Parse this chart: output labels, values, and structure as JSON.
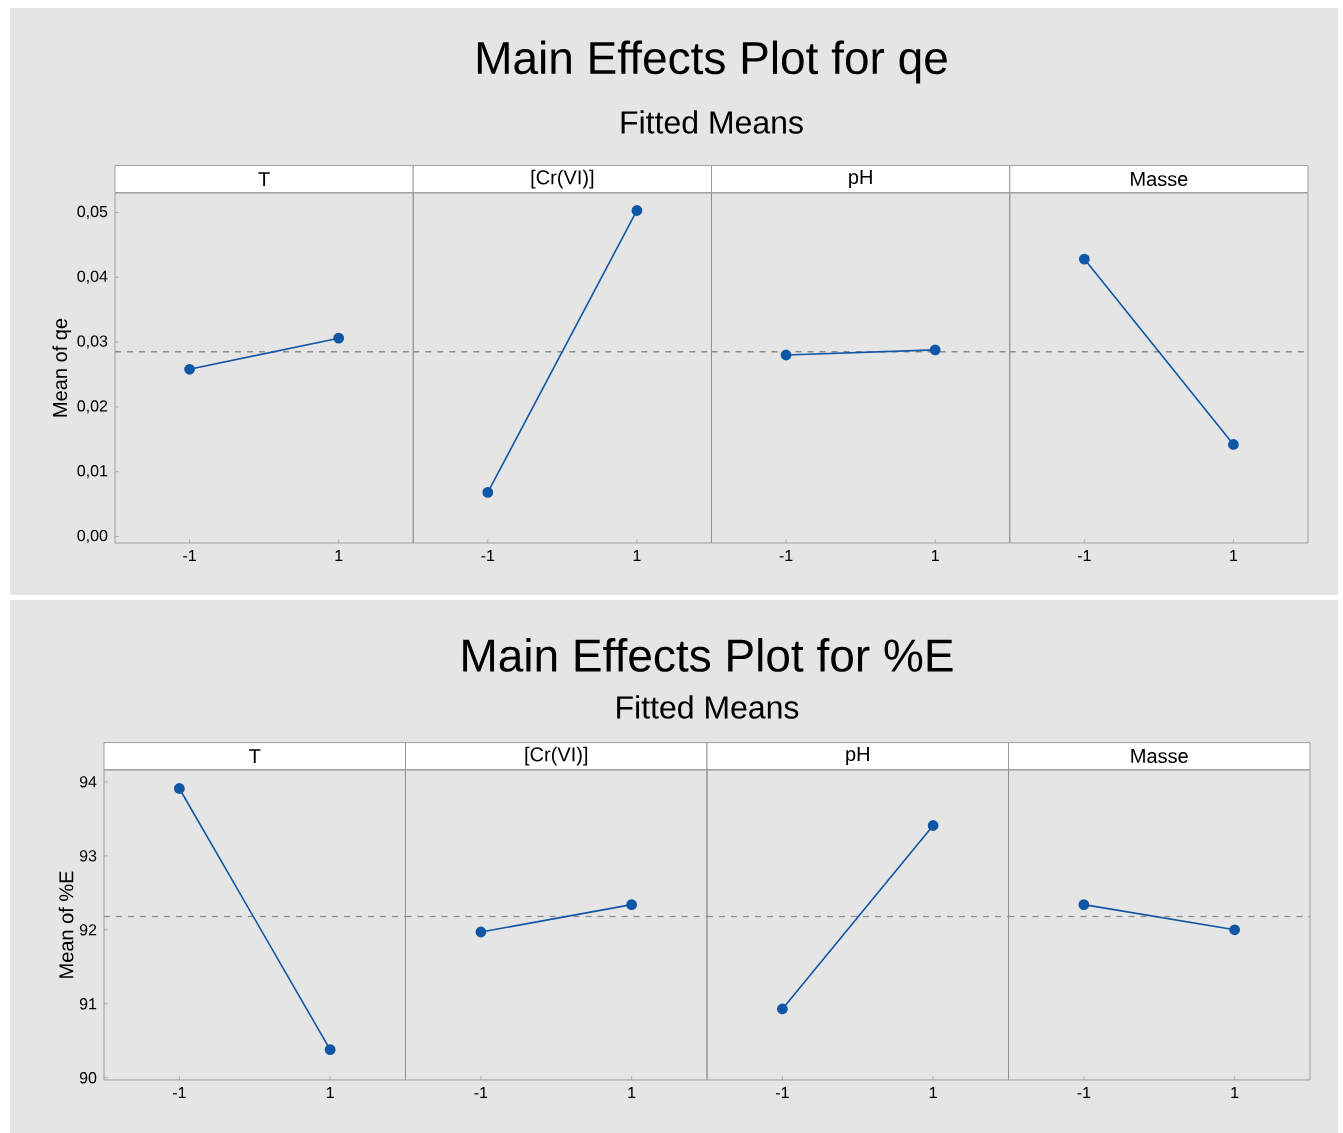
{
  "chart_data": [
    {
      "type": "line",
      "annotations": [
        "Main Effects Plot for qe",
        "Fitted Means"
      ],
      "xlabel": "T",
      "ylabel": "Mean of qe",
      "categories": [
        "-1",
        "1"
      ],
      "series": [
        {
          "color": "#0f56a6",
          "values": [
            0.0258,
            0.0306
          ]
        }
      ],
      "ylim": [
        -0.001,
        0.053
      ],
      "yticks": [
        {
          "value": 0,
          "label": "0,00"
        },
        {
          "value": 0.01,
          "label": "0,01"
        },
        {
          "value": 0.02,
          "label": "0,02"
        },
        {
          "value": 0.03,
          "label": "0,03"
        },
        {
          "value": 0.04,
          "label": "0,04"
        },
        {
          "value": 0.05,
          "label": "0,05"
        }
      ],
      "ref_lines": [
        {
          "axis": "y",
          "value": 0.0285,
          "color": "#8c8c8c",
          "line_style": "dashed"
        }
      ],
      "marker": "circle",
      "line_style": "solid",
      "grid": false
    },
    {
      "type": "line",
      "xlabel": "[Cr(VI)]",
      "categories": [
        "-1",
        "1"
      ],
      "series": [
        {
          "color": "#0f56a6",
          "values": [
            0.0068,
            0.0503
          ]
        }
      ],
      "ylim": [
        -0.001,
        0.053
      ],
      "tick_labels": "x",
      "ref_lines": [
        {
          "axis": "y",
          "value": 0.0285,
          "color": "#8c8c8c",
          "line_style": "dashed"
        }
      ],
      "marker": "circle",
      "line_style": "solid",
      "grid": false
    },
    {
      "type": "line",
      "xlabel": "pH",
      "categories": [
        "-1",
        "1"
      ],
      "series": [
        {
          "color": "#0f56a6",
          "values": [
            0.028,
            0.0288
          ]
        }
      ],
      "ylim": [
        -0.001,
        0.053
      ],
      "tick_labels": "x",
      "ref_lines": [
        {
          "axis": "y",
          "value": 0.0285,
          "color": "#8c8c8c",
          "line_style": "dashed"
        }
      ],
      "marker": "circle",
      "line_style": "solid",
      "grid": false
    },
    {
      "type": "line",
      "xlabel": "Masse",
      "categories": [
        "-1",
        "1"
      ],
      "series": [
        {
          "color": "#0f56a6",
          "values": [
            0.0428,
            0.0142
          ]
        }
      ],
      "ylim": [
        -0.001,
        0.053
      ],
      "tick_labels": "x",
      "ref_lines": [
        {
          "axis": "y",
          "value": 0.0285,
          "color": "#8c8c8c",
          "line_style": "dashed"
        }
      ],
      "marker": "circle",
      "line_style": "solid",
      "grid": false
    },
    {
      "type": "line",
      "annotations": [
        "Main Effects Plot for %E",
        "Fitted Means"
      ],
      "xlabel": "T",
      "ylabel": "Mean of %E",
      "categories": [
        "-1",
        "1"
      ],
      "series": [
        {
          "color": "#0f56a6",
          "values": [
            93.91,
            90.38
          ]
        }
      ],
      "ylim": [
        89.97,
        94.16
      ],
      "yticks": [
        90,
        91,
        92,
        93,
        94
      ],
      "ref_lines": [
        {
          "axis": "y",
          "value": 92.18,
          "color": "#8c8c8c",
          "line_style": "dashed"
        }
      ],
      "marker": "circle",
      "line_style": "solid",
      "grid": false
    },
    {
      "type": "line",
      "xlabel": "[Cr(VI)]",
      "categories": [
        "-1",
        "1"
      ],
      "series": [
        {
          "color": "#0f56a6",
          "values": [
            91.97,
            92.34
          ]
        }
      ],
      "ylim": [
        89.97,
        94.16
      ],
      "tick_labels": "x",
      "ref_lines": [
        {
          "axis": "y",
          "value": 92.18,
          "color": "#8c8c8c",
          "line_style": "dashed"
        }
      ],
      "marker": "circle",
      "line_style": "solid",
      "grid": false
    },
    {
      "type": "line",
      "xlabel": "pH",
      "categories": [
        "-1",
        "1"
      ],
      "series": [
        {
          "color": "#0f56a6",
          "values": [
            90.93,
            93.41
          ]
        }
      ],
      "ylim": [
        89.97,
        94.16
      ],
      "tick_labels": "x",
      "ref_lines": [
        {
          "axis": "y",
          "value": 92.18,
          "color": "#8c8c8c",
          "line_style": "dashed"
        }
      ],
      "marker": "circle",
      "line_style": "solid",
      "grid": false
    },
    {
      "type": "line",
      "xlabel": "Masse",
      "categories": [
        "-1",
        "1"
      ],
      "series": [
        {
          "color": "#0f56a6",
          "values": [
            92.34,
            92.0
          ]
        }
      ],
      "ylim": [
        89.97,
        94.16
      ],
      "tick_labels": "x",
      "ref_lines": [
        {
          "axis": "y",
          "value": 92.18,
          "color": "#8c8c8c",
          "line_style": "dashed"
        }
      ],
      "marker": "circle",
      "line_style": "solid",
      "grid": false
    }
  ]
}
